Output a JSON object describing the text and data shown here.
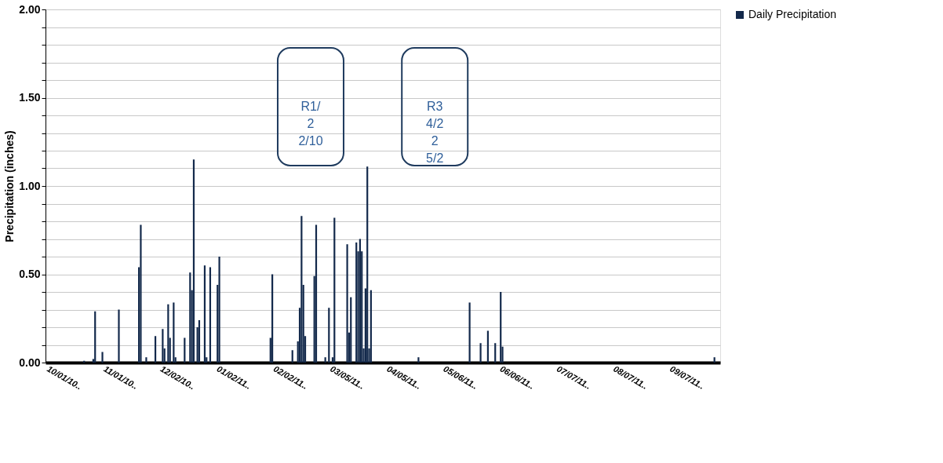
{
  "chart_data": {
    "type": "bar",
    "ylabel": "Precipitation (inches)",
    "x": [
      "2010-10-20",
      "2010-10-25",
      "2010-10-26",
      "2010-10-30",
      "2010-11-08",
      "2010-11-19",
      "2010-11-20",
      "2010-11-23",
      "2010-11-28",
      "2010-12-02",
      "2010-12-03",
      "2010-12-05",
      "2010-12-06",
      "2010-12-08",
      "2010-12-09",
      "2010-12-14",
      "2010-12-17",
      "2010-12-18",
      "2010-12-19",
      "2010-12-21",
      "2010-12-22",
      "2010-12-25",
      "2010-12-26",
      "2010-12-28",
      "2011-01-01",
      "2011-01-02",
      "2011-01-30",
      "2011-01-31",
      "2011-02-11",
      "2011-02-14",
      "2011-02-15",
      "2011-02-16",
      "2011-02-17",
      "2011-02-18",
      "2011-02-23",
      "2011-02-24",
      "2011-03-01",
      "2011-03-03",
      "2011-03-05",
      "2011-03-06",
      "2011-03-13",
      "2011-03-14",
      "2011-03-15",
      "2011-03-18",
      "2011-03-19",
      "2011-03-20",
      "2011-03-21",
      "2011-03-22",
      "2011-03-23",
      "2011-03-24",
      "2011-03-25",
      "2011-03-26",
      "2011-04-21",
      "2011-05-19",
      "2011-05-25",
      "2011-05-29",
      "2011-06-02",
      "2011-06-05",
      "2011-06-06",
      "2011-09-30"
    ],
    "series": [
      {
        "name": "Daily Precipitation",
        "color": "#13294b",
        "values": [
          0.01,
          0.02,
          0.29,
          0.06,
          0.3,
          0.54,
          0.78,
          0.03,
          0.15,
          0.19,
          0.08,
          0.33,
          0.14,
          0.34,
          0.03,
          0.14,
          0.51,
          0.41,
          1.15,
          0.2,
          0.24,
          0.55,
          0.03,
          0.54,
          0.44,
          0.6,
          0.14,
          0.5,
          0.07,
          0.12,
          0.31,
          0.83,
          0.44,
          0.15,
          0.49,
          0.78,
          0.03,
          0.31,
          0.03,
          0.82,
          0.67,
          0.17,
          0.37,
          0.68,
          0.63,
          0.7,
          0.63,
          0.08,
          0.42,
          1.11,
          0.08,
          0.41,
          0.03,
          0.34,
          0.11,
          0.18,
          0.11,
          0.4,
          0.09,
          0.03
        ]
      }
    ],
    "xlim": [
      "2010-10-01",
      "2011-10-01"
    ],
    "xticks": [
      {
        "value": "2010-10-01",
        "label": "10/01/10.."
      },
      {
        "value": "2010-11-01",
        "label": "11/01/10.."
      },
      {
        "value": "2010-12-02",
        "label": "12/02/10.."
      },
      {
        "value": "2011-01-02",
        "label": "01/02/11.."
      },
      {
        "value": "2011-02-02",
        "label": "02/02/11.."
      },
      {
        "value": "2011-03-05",
        "label": "03/05/11.."
      },
      {
        "value": "2011-04-05",
        "label": "04/05/11.."
      },
      {
        "value": "2011-05-06",
        "label": "05/06/11.."
      },
      {
        "value": "2011-06-06",
        "label": "06/06/11.."
      },
      {
        "value": "2011-07-07",
        "label": "07/07/11.."
      },
      {
        "value": "2011-08-07",
        "label": "08/07/11.."
      },
      {
        "value": "2011-09-07",
        "label": "09/07/11.."
      }
    ],
    "ylim": [
      0,
      2
    ],
    "yticks": [
      {
        "value": 0,
        "label": "0.00"
      },
      {
        "value": 0.1,
        "label": null
      },
      {
        "value": 0.2,
        "label": null
      },
      {
        "value": 0.3,
        "label": null
      },
      {
        "value": 0.4,
        "label": null
      },
      {
        "value": 0.5,
        "label": "0.50"
      },
      {
        "value": 0.6,
        "label": null
      },
      {
        "value": 0.7,
        "label": null
      },
      {
        "value": 0.8,
        "label": null
      },
      {
        "value": 0.9,
        "label": null
      },
      {
        "value": 1.0,
        "label": "1.00"
      },
      {
        "value": 1.1,
        "label": null
      },
      {
        "value": 1.2,
        "label": null
      },
      {
        "value": 1.3,
        "label": null
      },
      {
        "value": 1.4,
        "label": null
      },
      {
        "value": 1.5,
        "label": "1.50"
      },
      {
        "value": 1.6,
        "label": null
      },
      {
        "value": 1.7,
        "label": null
      },
      {
        "value": 1.8,
        "label": null
      },
      {
        "value": 1.9,
        "label": null
      },
      {
        "value": 2.0,
        "label": "2.00"
      }
    ],
    "grid": "y",
    "legend": "right",
    "annotations": [
      "R1/\n2\n2/10",
      "R3\n4/2\n2\n5/2"
    ]
  }
}
